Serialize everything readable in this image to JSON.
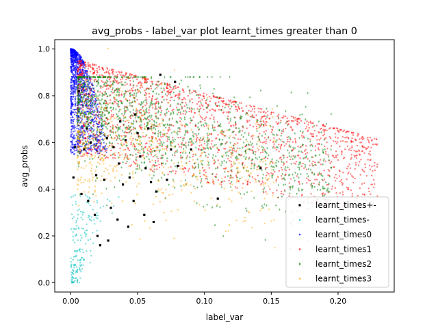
{
  "chart_data": {
    "type": "scatter",
    "title": "avg_probs - label_var plot learnt_times greater than 0",
    "xlabel": "label_var",
    "ylabel": "avg_probs",
    "xlim": [
      -0.012,
      0.242
    ],
    "ylim": [
      -0.04,
      1.04
    ],
    "x_ticks": [
      0.0,
      0.05,
      0.1,
      0.15,
      0.2
    ],
    "x_tick_labels": [
      "0.00",
      "0.05",
      "0.10",
      "0.15",
      "0.20"
    ],
    "y_ticks": [
      0.0,
      0.2,
      0.4,
      0.6,
      0.8,
      1.0
    ],
    "y_tick_labels": [
      "0.0",
      "0.2",
      "0.4",
      "0.6",
      "0.8",
      "1.0"
    ],
    "grid": false,
    "legend_position": "lower-right",
    "series": [
      {
        "name": "learnt_times+-",
        "color": "#000000",
        "marker": "square",
        "points": [
          [
            0.002,
            0.45
          ],
          [
            0.003,
            0.58
          ],
          [
            0.006,
            0.82
          ],
          [
            0.008,
            0.38
          ],
          [
            0.01,
            0.57
          ],
          [
            0.012,
            0.66
          ],
          [
            0.013,
            0.35
          ],
          [
            0.015,
            0.6
          ],
          [
            0.018,
            0.29
          ],
          [
            0.019,
            0.46
          ],
          [
            0.02,
            0.2
          ],
          [
            0.022,
            0.16
          ],
          [
            0.025,
            0.44
          ],
          [
            0.027,
            0.62
          ],
          [
            0.028,
            0.18
          ],
          [
            0.03,
            0.32
          ],
          [
            0.032,
            0.58
          ],
          [
            0.035,
            0.27
          ],
          [
            0.036,
            0.51
          ],
          [
            0.037,
            0.69
          ],
          [
            0.039,
            0.42
          ],
          [
            0.041,
            0.61
          ],
          [
            0.043,
            0.24
          ],
          [
            0.044,
            0.45
          ],
          [
            0.047,
            0.35
          ],
          [
            0.048,
            0.72
          ],
          [
            0.05,
            0.64
          ],
          [
            0.052,
            0.54
          ],
          [
            0.055,
            0.29
          ],
          [
            0.056,
            0.49
          ],
          [
            0.058,
            0.66
          ],
          [
            0.06,
            0.43
          ],
          [
            0.062,
            0.26
          ],
          [
            0.064,
            0.39
          ],
          [
            0.067,
            0.89
          ],
          [
            0.072,
            0.44
          ],
          [
            0.078,
            0.86
          ],
          [
            0.08,
            0.5
          ],
          [
            0.09,
            0.57
          ],
          [
            0.11,
            0.36
          ],
          [
            0.142,
            0.49
          ],
          [
            0.075,
            0.57
          ]
        ]
      },
      {
        "name": "learnt_times-",
        "color": "#00bfbf",
        "marker": "circle",
        "cluster": {
          "x_range": [
            0.0,
            0.025
          ],
          "y_range": [
            0.0,
            0.38
          ],
          "count": 180
        }
      },
      {
        "name": "learnt_times0",
        "color": "#0000ff",
        "marker": "circle",
        "cluster": {
          "x_range": [
            0.0,
            0.025
          ],
          "y_range": [
            0.55,
            1.0
          ],
          "count": 1200
        }
      },
      {
        "name": "learnt_times1",
        "color": "#ff0000",
        "marker": "circle",
        "cluster": {
          "x_range": [
            0.005,
            0.23
          ],
          "y_range": [
            0.12,
            0.96
          ],
          "count": 1800
        }
      },
      {
        "name": "learnt_times2",
        "color": "#008000",
        "marker": "diamond",
        "cluster": {
          "x_range": [
            0.005,
            0.2
          ],
          "y_range": [
            0.25,
            0.88
          ],
          "count": 1400
        }
      },
      {
        "name": "learnt_times3",
        "color": "#ffa500",
        "marker": "circle",
        "cluster": {
          "x_range": [
            0.005,
            0.15
          ],
          "y_range": [
            0.3,
            0.8
          ],
          "count": 500
        }
      }
    ]
  }
}
